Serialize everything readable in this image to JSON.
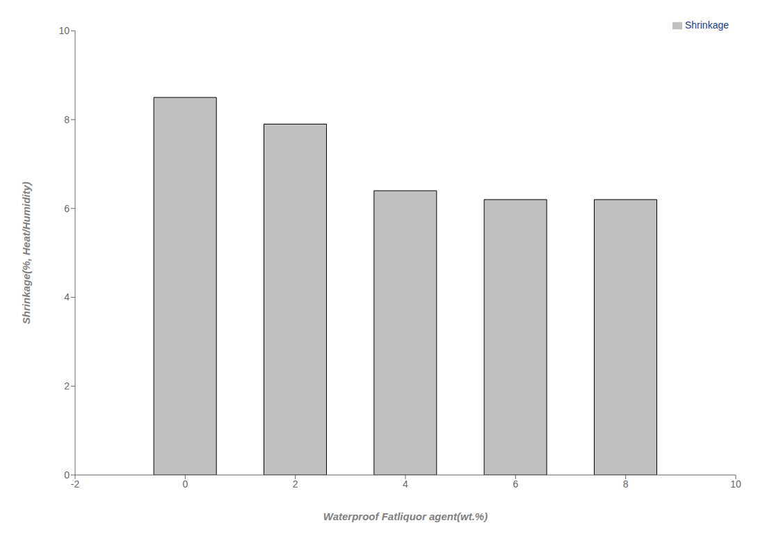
{
  "chart_data": {
    "type": "bar",
    "xlabel": "Waterproof Fatliquor agent(wt.%)",
    "ylabel": "Shrinkage(%, Heat/Humidity)",
    "x": [
      0,
      2,
      4,
      6,
      8
    ],
    "series": [
      {
        "name": "Shrinkage",
        "color": "#c0c0c0",
        "values": [
          8.5,
          7.9,
          6.4,
          6.2,
          6.2
        ]
      }
    ],
    "xlim": [
      -2,
      10
    ],
    "xticks": [
      -2,
      0,
      2,
      4,
      6,
      8,
      10
    ],
    "ylim": [
      0,
      10
    ],
    "yticks": [
      0,
      2,
      4,
      6,
      8,
      10
    ],
    "grid": false,
    "legend": "upper right"
  }
}
